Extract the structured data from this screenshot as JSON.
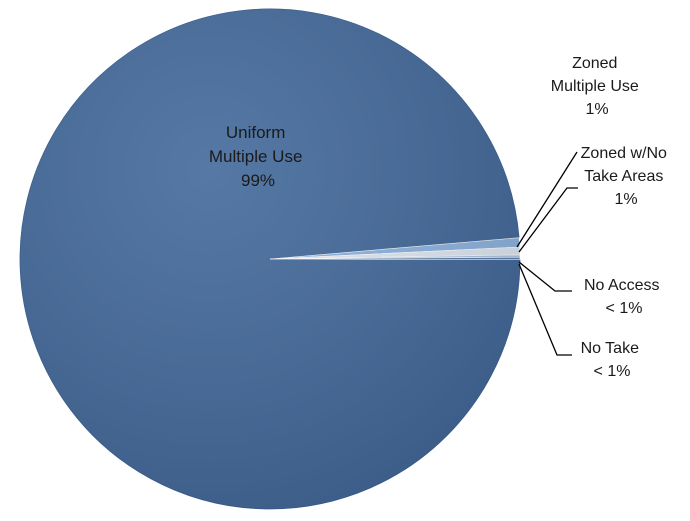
{
  "chart_data": {
    "type": "pie",
    "title": "",
    "slices": [
      {
        "label": [
          "Uniform",
          "Multiple Use"
        ],
        "value_label": "99%",
        "value": 98.6,
        "color": "#43699a"
      },
      {
        "label": [
          "Zoned",
          "Multiple Use"
        ],
        "value_label": "1%",
        "value": 0.6,
        "color": "#8db3df"
      },
      {
        "label": [
          "Zoned w/No",
          "Take Areas"
        ],
        "value_label": "1%",
        "value": 0.5,
        "color": "#dfe7f1"
      },
      {
        "label": [
          "No Access"
        ],
        "value_label": "< 1%",
        "value": 0.15,
        "color": "#b4c7de"
      },
      {
        "label": [
          "No Take"
        ],
        "value_label": "< 1%",
        "value": 0.15,
        "color": "#5a80b0"
      }
    ]
  }
}
